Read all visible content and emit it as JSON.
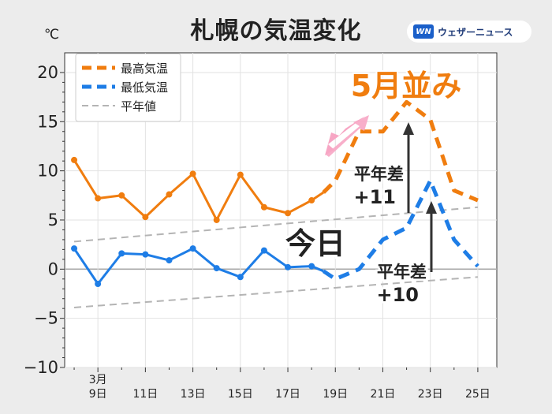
{
  "title": "札幌の気温変化",
  "unit": "℃",
  "brand": {
    "mark": "WN",
    "name": "ウェザーニュース"
  },
  "colors": {
    "max": "#f07d0f",
    "min": "#1e7de6",
    "normal": "#b4b4b4",
    "arrow": "#333333",
    "pink": "#f7a6c4"
  },
  "annotations": {
    "today": "今日",
    "may_like": "5月並み",
    "max_diff_1": "平年差",
    "max_diff_2": "+11",
    "min_diff_1": "平年差",
    "min_diff_2": "+10"
  },
  "chart_data": {
    "type": "line",
    "title": "札幌の気温変化",
    "ylabel": "℃",
    "ylim": [
      -10,
      22
    ],
    "xlim": [
      7.6,
      25.8
    ],
    "yticks": [
      -10,
      -5,
      0,
      5,
      10,
      15,
      20
    ],
    "xticks": [
      {
        "x": 9,
        "label": "9日",
        "sub": "3月"
      },
      {
        "x": 11,
        "label": "11日"
      },
      {
        "x": 13,
        "label": "13日"
      },
      {
        "x": 15,
        "label": "15日"
      },
      {
        "x": 17,
        "label": "17日"
      },
      {
        "x": 19,
        "label": "19日"
      },
      {
        "x": 21,
        "label": "21日"
      },
      {
        "x": 23,
        "label": "23日"
      },
      {
        "x": 25,
        "label": "25日"
      }
    ],
    "legend": [
      "最高気温",
      "最低気温",
      "平年値"
    ],
    "today_x": 18.5,
    "series": [
      {
        "name": "最高気温",
        "x": [
          8,
          9,
          10,
          11,
          12,
          13,
          14,
          15,
          16,
          17,
          18,
          18.5,
          19,
          20,
          21,
          22,
          23,
          24,
          25
        ],
        "values": [
          11.1,
          7.2,
          7.5,
          5.3,
          7.6,
          9.7,
          5.0,
          9.6,
          6.3,
          5.7,
          7.0,
          7.8,
          9.0,
          14.0,
          14.0,
          17.0,
          15.2,
          8.0,
          7.0
        ]
      },
      {
        "name": "最低気温",
        "x": [
          8,
          9,
          10,
          11,
          12,
          13,
          14,
          15,
          16,
          17,
          18,
          18.5,
          19,
          20,
          21,
          22,
          23,
          24,
          25
        ],
        "values": [
          2.1,
          -1.5,
          1.6,
          1.5,
          0.9,
          2.1,
          0.1,
          -0.8,
          1.9,
          0.2,
          0.3,
          -0.2,
          -1.0,
          0.0,
          3.0,
          4.2,
          9.0,
          3.0,
          0.3
        ]
      },
      {
        "name": "平年値 (最高)",
        "x": [
          8,
          25
        ],
        "values": [
          2.8,
          6.3
        ]
      },
      {
        "name": "平年値 (最低)",
        "x": [
          8,
          25
        ],
        "values": [
          -3.9,
          -0.8
        ]
      }
    ]
  }
}
